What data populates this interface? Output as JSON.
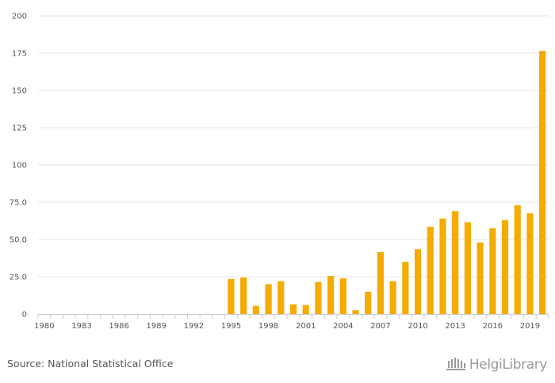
{
  "colors": {
    "bar": "#F5AB00",
    "grid": "#e6e6e6",
    "axis": "#cccccc"
  },
  "footer": {
    "source": "Source: National Statistical Office",
    "logo_text": "HelgiLibrary",
    "logo_icon": "library-building-icon"
  },
  "chart_data": {
    "type": "bar",
    "title": "",
    "xlabel": "",
    "ylabel": "",
    "ylim": [
      0,
      200
    ],
    "y_ticks": [
      "0",
      "25.0",
      "50.0",
      "75.0",
      "100",
      "125",
      "150",
      "175",
      "200"
    ],
    "x_tick_labels": [
      "1980",
      "1983",
      "1986",
      "1989",
      "1992",
      "1995",
      "1998",
      "2001",
      "2004",
      "2007",
      "2010",
      "2013",
      "2016",
      "2019"
    ],
    "grid": true,
    "categories": [
      "1980",
      "1981",
      "1982",
      "1983",
      "1984",
      "1985",
      "1986",
      "1987",
      "1988",
      "1989",
      "1990",
      "1991",
      "1992",
      "1993",
      "1994",
      "1995",
      "1996",
      "1997",
      "1998",
      "1999",
      "2000",
      "2001",
      "2002",
      "2003",
      "2004",
      "2005",
      "2006",
      "2007",
      "2008",
      "2009",
      "2010",
      "2011",
      "2012",
      "2013",
      "2014",
      "2015",
      "2016",
      "2017",
      "2018",
      "2019",
      "2020"
    ],
    "values": [
      null,
      null,
      null,
      null,
      null,
      null,
      null,
      null,
      null,
      null,
      null,
      null,
      null,
      null,
      null,
      23.5,
      24.5,
      5.5,
      20,
      22,
      6.5,
      6,
      21.5,
      25.5,
      24,
      2.5,
      15,
      41.5,
      22,
      35,
      43.5,
      58.5,
      64,
      69,
      61.5,
      48,
      57.5,
      63,
      73,
      67.5,
      176.5
    ]
  }
}
